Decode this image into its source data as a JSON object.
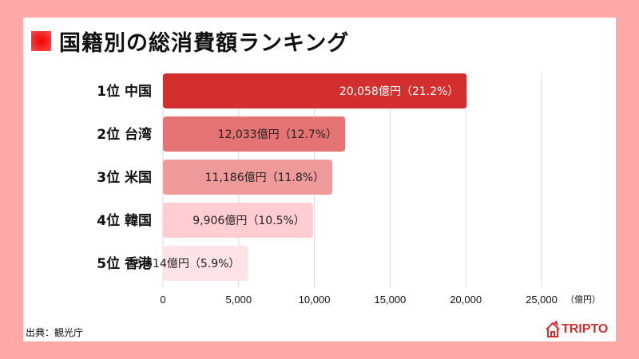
{
  "title": "国籍別の総消費額ランキング",
  "source": "出典：観光庁",
  "logo_text": "TRIPTO",
  "chart_data": {
    "type": "bar",
    "orientation": "horizontal",
    "title": "国籍別の総消費額ランキング",
    "categories": [
      "1位 中国",
      "2位 台湾",
      "3位 米国",
      "4位 韓国",
      "5位 香港"
    ],
    "values": [
      20058,
      12033,
      11186,
      9906,
      5614
    ],
    "data_labels": [
      "20,058億円（21.2%）",
      "12,033億円（12.7%）",
      "11,186億円（11.8%）",
      "9,906億円（10.5%）",
      "5,614億円（5.9%）"
    ],
    "label_colors": [
      "#ffffff",
      "#222222",
      "#222222",
      "#222222",
      "#222222"
    ],
    "colors": [
      "#d32f2f",
      "#e57373",
      "#ef9a9a",
      "#ffcdd2",
      "#fde3e6"
    ],
    "xlim": [
      0,
      25000
    ],
    "x_ticks": [
      0,
      5000,
      10000,
      15000,
      20000,
      25000
    ],
    "x_tick_labels": [
      "0",
      "5,000",
      "10,000",
      "15,000",
      "20,000",
      "25,000"
    ],
    "unit_label": "（億円）",
    "grid": true
  }
}
